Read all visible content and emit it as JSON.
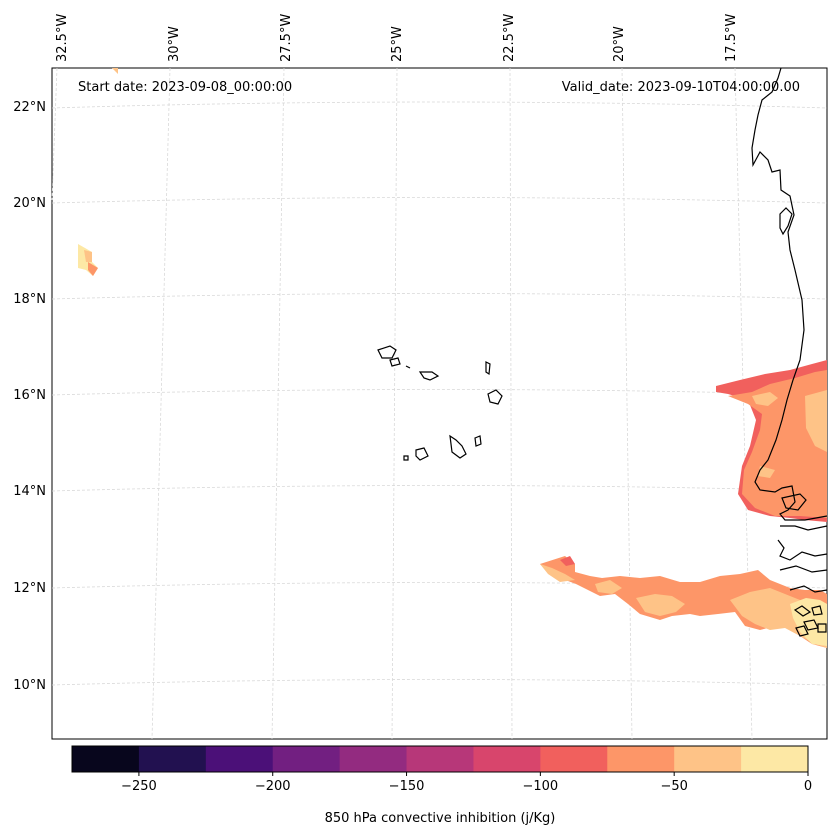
{
  "map": {
    "start_date": "Start date: 2023-09-08_00:00:00",
    "valid_date": "Valid_date: 2023-09-10T04:00:00.00",
    "lon_labels": [
      "32.5°W",
      "30°W",
      "27.5°W",
      "25°W",
      "22.5°W",
      "20°W",
      "17.5°W"
    ],
    "lat_labels": [
      "22°N",
      "20°N",
      "18°N",
      "16°N",
      "14°N",
      "12°N",
      "10°N"
    ]
  },
  "colorbar": {
    "title": "850 hPa convective inhibition (j/Kg)",
    "ticks": [
      "−250",
      "−200",
      "−150",
      "−100",
      "−50",
      "0"
    ],
    "colors": [
      "#08061d",
      "#221150",
      "#4b1078",
      "#721f81",
      "#932b80",
      "#b73779",
      "#d8456c",
      "#f1605d",
      "#fd9668",
      "#fec387",
      "#fde8a5"
    ]
  }
}
